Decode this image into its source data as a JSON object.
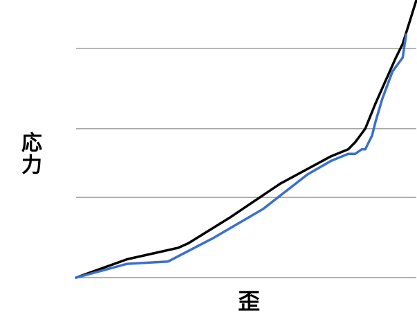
{
  "chart_data": {
    "type": "line",
    "title": "",
    "xlabel": "歪",
    "ylabel": "応力",
    "grid": true,
    "legend": "none",
    "xlim": [
      0,
      100
    ],
    "ylim": [
      0,
      100
    ],
    "gridlines_y": [
      0,
      35,
      65,
      100
    ],
    "series": [
      {
        "color": "#000000",
        "x": [
          0,
          15,
          30,
          33,
          45,
          60,
          75,
          80,
          82,
          84,
          85,
          88,
          91,
          94,
          96,
          100
        ],
        "y": [
          0,
          8,
          13,
          15,
          26,
          41,
          53,
          56,
          59,
          63,
          65,
          76,
          86,
          96,
          102,
          121
        ]
      },
      {
        "color": "#3a6fd0",
        "x": [
          0,
          15,
          27,
          40,
          55,
          68,
          75,
          80,
          82,
          84,
          85,
          87,
          88,
          90,
          91,
          93,
          96,
          97
        ],
        "y": [
          0,
          6,
          7,
          17,
          30,
          45,
          51,
          54,
          54,
          56,
          56,
          62,
          68,
          78,
          82,
          90,
          96,
          106
        ]
      }
    ]
  }
}
